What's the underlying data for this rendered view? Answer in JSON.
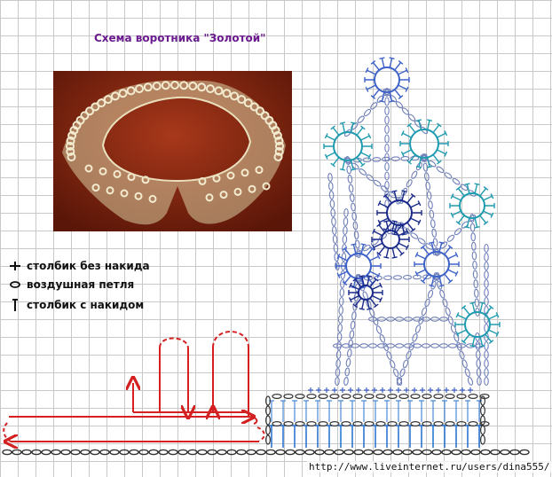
{
  "title": "Схема воротника \"Золотой\"",
  "legend": [
    {
      "icon": "single-crochet-icon",
      "label": "столбик без накида"
    },
    {
      "icon": "chain-stitch-icon",
      "label": "воздушная петля"
    },
    {
      "icon": "double-crochet-icon",
      "label": "столбик с накидом"
    }
  ],
  "watermark_url": "http://www.liveinternet.ru/users/dina555/",
  "colors": {
    "title": "#6a1b8e",
    "red_arrows": "#d42020",
    "chain": "#333333",
    "blue_stitches": "#1e6fd0",
    "ring_blue": "#3e62c8",
    "ring_teal": "#1f9bb0",
    "ring_navy": "#1a2a8a",
    "photo_background": "#8a2a12",
    "lace": "#efe6c8"
  }
}
